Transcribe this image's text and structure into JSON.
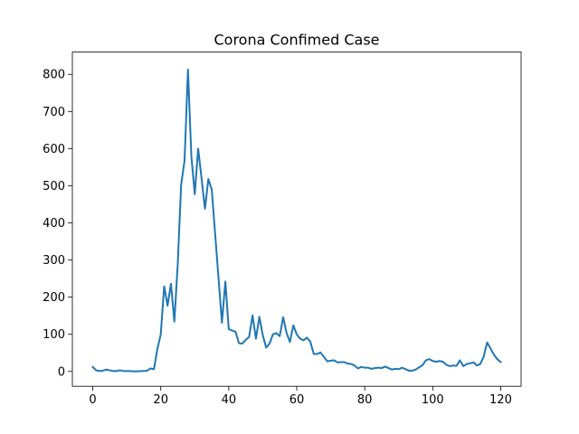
{
  "chart_data": {
    "type": "line",
    "title": "Corona Confimed Case",
    "xlabel": "",
    "ylabel": "",
    "xlim": [
      -6,
      126
    ],
    "ylim": [
      -40,
      860
    ],
    "xticks": [
      0,
      20,
      40,
      60,
      80,
      100,
      120
    ],
    "yticks": [
      0,
      100,
      200,
      300,
      400,
      500,
      600,
      700,
      800
    ],
    "grid": false,
    "legend": "none",
    "series": [
      {
        "color": "#1f77b4",
        "x": [
          0,
          1,
          2,
          3,
          4,
          5,
          6,
          7,
          8,
          9,
          10,
          11,
          12,
          13,
          14,
          15,
          16,
          17,
          18,
          19,
          20,
          21,
          22,
          23,
          24,
          25,
          26,
          27,
          28,
          29,
          30,
          31,
          32,
          33,
          34,
          35,
          36,
          37,
          38,
          39,
          40,
          41,
          42,
          43,
          44,
          45,
          46,
          47,
          48,
          49,
          50,
          51,
          52,
          53,
          54,
          55,
          56,
          57,
          58,
          59,
          60,
          61,
          62,
          63,
          64,
          65,
          66,
          67,
          68,
          69,
          70,
          71,
          72,
          73,
          74,
          75,
          76,
          77,
          78,
          79,
          80,
          81,
          82,
          83,
          84,
          85,
          86,
          87,
          88,
          89,
          90,
          91,
          92,
          93,
          94,
          95,
          96,
          97,
          98,
          99,
          100,
          101,
          102,
          103,
          104,
          105,
          106,
          107,
          108,
          109,
          110,
          111,
          112,
          113,
          114,
          115,
          116,
          117,
          118,
          119,
          120
        ],
        "values": [
          12,
          3,
          1,
          2,
          5,
          3,
          1,
          1,
          3,
          1,
          1,
          1,
          0,
          0,
          1,
          1,
          2,
          8,
          6,
          60,
          100,
          229,
          177,
          236,
          134,
          290,
          503,
          568,
          813,
          580,
          477,
          600,
          520,
          438,
          518,
          490,
          370,
          250,
          131,
          242,
          114,
          110,
          107,
          76,
          75,
          85,
          93,
          151,
          88,
          147,
          98,
          64,
          75,
          100,
          103,
          95,
          146,
          104,
          79,
          124,
          100,
          88,
          84,
          91,
          80,
          47,
          47,
          51,
          39,
          27,
          29,
          30,
          24,
          25,
          25,
          21,
          20,
          16,
          8,
          12,
          10,
          10,
          7,
          9,
          10,
          9,
          13,
          9,
          5,
          7,
          6,
          10,
          6,
          2,
          2,
          5,
          11,
          17,
          30,
          33,
          28,
          26,
          28,
          26,
          18,
          14,
          16,
          15,
          30,
          14,
          20,
          22,
          24,
          16,
          20,
          40,
          78,
          62,
          45,
          33,
          25
        ]
      }
    ]
  }
}
